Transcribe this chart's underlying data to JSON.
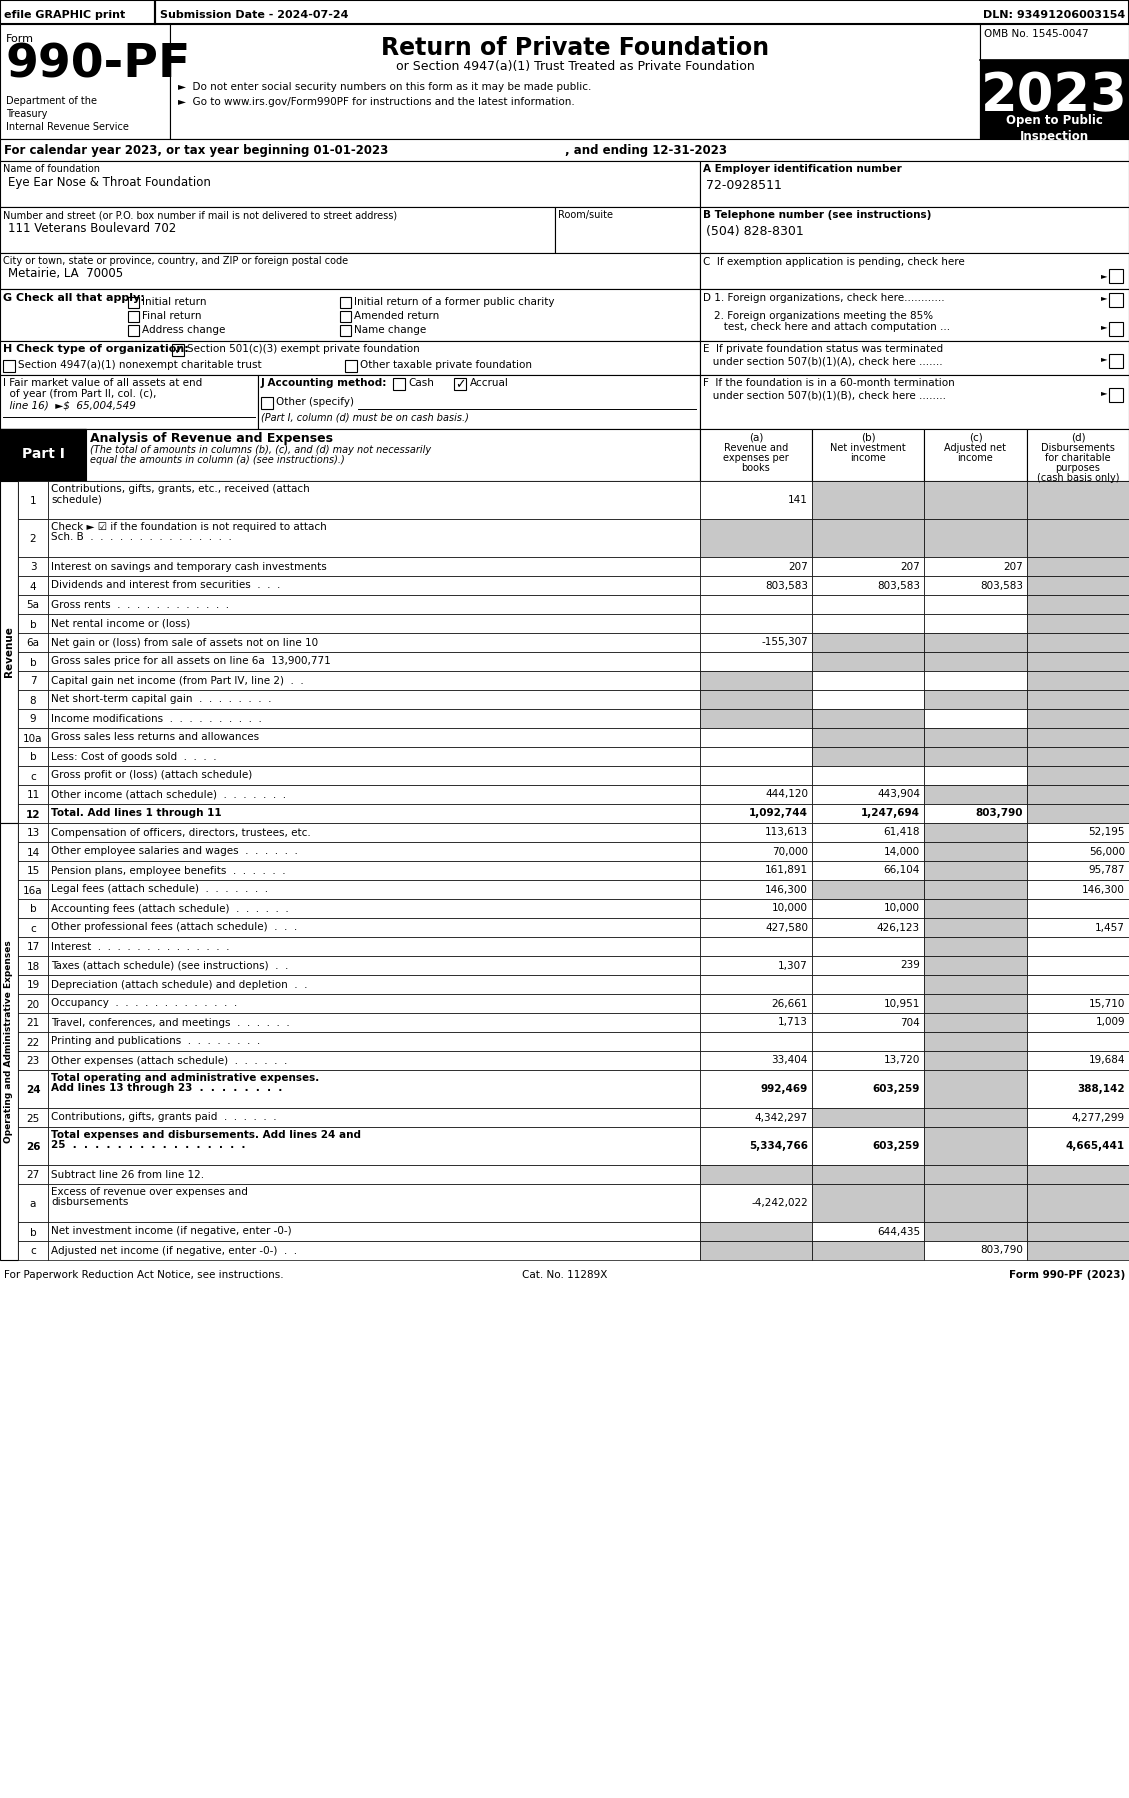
{
  "top_bar": {
    "efile": "efile GRAPHIC print",
    "submission": "Submission Date - 2024-07-24",
    "dln": "DLN: 93491206003154"
  },
  "form_number": "990-PF",
  "form_label": "Form",
  "title": "Return of Private Foundation",
  "subtitle": "or Section 4947(a)(1) Trust Treated as Private Foundation",
  "bullet1": "►  Do not enter social security numbers on this form as it may be made public.",
  "bullet2": "►  Go to www.irs.gov/Form990PF for instructions and the latest information.",
  "dept": "Department of the\nTreasury\nInternal Revenue Service",
  "omb": "OMB No. 1545-0047",
  "year": "2023",
  "open_to": "Open to Public\nInspection",
  "cal_year": "For calendar year 2023, or tax year beginning 01-01-2023",
  "ending": ", and ending 12-31-2023",
  "foundation_name_label": "Name of foundation",
  "foundation_name": "Eye Ear Nose & Throat Foundation",
  "ein_label": "A Employer identification number",
  "ein": "72-0928511",
  "address_label": "Number and street (or P.O. box number if mail is not delivered to street address)",
  "room_label": "Room/suite",
  "address": "111 Veterans Boulevard 702",
  "phone_label": "B Telephone number (see instructions)",
  "phone": "(504) 828-8301",
  "city_label": "City or town, state or province, country, and ZIP or foreign postal code",
  "city": "Metairie, LA  70005",
  "g_label": "G Check all that apply:",
  "d1_label": "D 1. Foreign organizations, check here............",
  "d2_label": "2. Foreign organizations meeting the 85%\n   test, check here and attach computation ...",
  "e_label": "E  If private foundation status was terminated\n   under section 507(b)(1)(A), check here .......",
  "h_label": "H Check type of organization:",
  "h_checked": "Section 501(c)(3) exempt private foundation",
  "h_unchecked1": "Section 4947(a)(1) nonexempt charitable trust",
  "h_unchecked2": "Other taxable private foundation",
  "i_label_1": "I Fair market value of all assets at end",
  "i_label_2": "  of year (from Part II, col. (c),",
  "i_label_3": "  line 16)  ►$  65,004,549",
  "j_label": "J Accounting method:",
  "j_cash": "Cash",
  "j_accrual": "Accrual",
  "j_other": "Other (specify)",
  "j_note": "(Part I, column (d) must be on cash basis.)",
  "f_label_1": "F  If the foundation is in a 60-month termination",
  "f_label_2": "   under section 507(b)(1)(B), check here ........",
  "part1_title": "Part I",
  "part1_heading": "Analysis of Revenue and Expenses",
  "part1_subtext1": "(The total of amounts in columns (b), (c), and (d) may not necessarily",
  "part1_subtext2": "equal the amounts in column (a) (see instructions).)",
  "col_a": "(a)\nRevenue and\nexpenses per\nbooks",
  "col_b": "(b)\nNet investment\nincome",
  "col_c": "(c)\nAdjusted net\nincome",
  "col_d": "(d)\nDisbursements\nfor charitable\npurposes\n(cash basis only)",
  "rows": [
    {
      "num": "1",
      "label": "Contributions, gifts, grants, etc., received (attach\nschedule)",
      "a": "141",
      "b": "",
      "c": "",
      "d": "",
      "shade_b": true,
      "shade_c": true,
      "shade_d": true
    },
    {
      "num": "2",
      "label": "Check ► ☑ if the foundation is not required to attach\nSch. B  .  .  .  .  .  .  .  .  .  .  .  .  .  .  .",
      "a": "",
      "b": "",
      "c": "",
      "d": "",
      "shade_a": true,
      "shade_b": true,
      "shade_c": true,
      "shade_d": true
    },
    {
      "num": "3",
      "label": "Interest on savings and temporary cash investments",
      "a": "207",
      "b": "207",
      "c": "207",
      "d": "",
      "shade_d": true
    },
    {
      "num": "4",
      "label": "Dividends and interest from securities  .  .  .",
      "a": "803,583",
      "b": "803,583",
      "c": "803,583",
      "d": "",
      "shade_d": true
    },
    {
      "num": "5a",
      "label": "Gross rents  .  .  .  .  .  .  .  .  .  .  .  .",
      "a": "",
      "b": "",
      "c": "",
      "d": "",
      "shade_d": true
    },
    {
      "num": "b",
      "label": "Net rental income or (loss)",
      "a": "",
      "b": "",
      "c": "",
      "d": "",
      "shade_d": true
    },
    {
      "num": "6a",
      "label": "Net gain or (loss) from sale of assets not on line 10",
      "a": "-155,307",
      "b": "",
      "c": "",
      "d": "",
      "shade_b": true,
      "shade_c": true,
      "shade_d": true
    },
    {
      "num": "b",
      "label": "Gross sales price for all assets on line 6a  13,900,771",
      "a": "",
      "b": "",
      "c": "",
      "d": "",
      "shade_b": true,
      "shade_c": true,
      "shade_d": true
    },
    {
      "num": "7",
      "label": "Capital gain net income (from Part IV, line 2)  .  .",
      "a": "",
      "b": "",
      "c": "",
      "d": "",
      "shade_a": true,
      "shade_d": true
    },
    {
      "num": "8",
      "label": "Net short-term capital gain  .  .  .  .  .  .  .  .",
      "a": "",
      "b": "",
      "c": "",
      "d": "",
      "shade_a": true,
      "shade_c": true,
      "shade_d": true
    },
    {
      "num": "9",
      "label": "Income modifications  .  .  .  .  .  .  .  .  .  .",
      "a": "",
      "b": "",
      "c": "",
      "d": "",
      "shade_a": true,
      "shade_b": true,
      "shade_d": true
    },
    {
      "num": "10a",
      "label": "Gross sales less returns and allowances",
      "a": "",
      "b": "",
      "c": "",
      "d": "",
      "shade_b": true,
      "shade_c": true,
      "shade_d": true
    },
    {
      "num": "b",
      "label": "Less: Cost of goods sold  .  .  .  .",
      "a": "",
      "b": "",
      "c": "",
      "d": "",
      "shade_b": true,
      "shade_c": true,
      "shade_d": true
    },
    {
      "num": "c",
      "label": "Gross profit or (loss) (attach schedule)",
      "a": "",
      "b": "",
      "c": "",
      "d": "",
      "shade_d": true
    },
    {
      "num": "11",
      "label": "Other income (attach schedule)  .  .  .  .  .  .  .",
      "a": "444,120",
      "b": "443,904",
      "c": "",
      "d": "",
      "shade_c": true,
      "shade_d": true
    },
    {
      "num": "12",
      "label": "Total. Add lines 1 through 11",
      "a": "1,092,744",
      "b": "1,247,694",
      "c": "803,790",
      "d": "",
      "bold": true,
      "shade_d": true
    },
    {
      "num": "13",
      "label": "Compensation of officers, directors, trustees, etc.",
      "a": "113,613",
      "b": "61,418",
      "c": "",
      "d": "52,195",
      "shade_c": true
    },
    {
      "num": "14",
      "label": "Other employee salaries and wages  .  .  .  .  .  .",
      "a": "70,000",
      "b": "14,000",
      "c": "",
      "d": "56,000",
      "shade_c": true
    },
    {
      "num": "15",
      "label": "Pension plans, employee benefits  .  .  .  .  .  .",
      "a": "161,891",
      "b": "66,104",
      "c": "",
      "d": "95,787",
      "shade_c": true
    },
    {
      "num": "16a",
      "label": "Legal fees (attach schedule)  .  .  .  .  .  .  .",
      "a": "146,300",
      "b": "",
      "c": "",
      "d": "146,300",
      "shade_b": true,
      "shade_c": true
    },
    {
      "num": "b",
      "label": "Accounting fees (attach schedule)  .  .  .  .  .  .",
      "a": "10,000",
      "b": "10,000",
      "c": "",
      "d": "",
      "shade_c": true
    },
    {
      "num": "c",
      "label": "Other professional fees (attach schedule)  .  .  .",
      "a": "427,580",
      "b": "426,123",
      "c": "",
      "d": "1,457",
      "shade_c": true
    },
    {
      "num": "17",
      "label": "Interest  .  .  .  .  .  .  .  .  .  .  .  .  .  .",
      "a": "",
      "b": "",
      "c": "",
      "d": "",
      "shade_c": true
    },
    {
      "num": "18",
      "label": "Taxes (attach schedule) (see instructions)  .  .",
      "a": "1,307",
      "b": "239",
      "c": "",
      "d": "",
      "shade_c": true
    },
    {
      "num": "19",
      "label": "Depreciation (attach schedule) and depletion  .  .",
      "a": "",
      "b": "",
      "c": "",
      "d": "",
      "shade_c": true
    },
    {
      "num": "20",
      "label": "Occupancy  .  .  .  .  .  .  .  .  .  .  .  .  .",
      "a": "26,661",
      "b": "10,951",
      "c": "",
      "d": "15,710",
      "shade_c": true
    },
    {
      "num": "21",
      "label": "Travel, conferences, and meetings  .  .  .  .  .  .",
      "a": "1,713",
      "b": "704",
      "c": "",
      "d": "1,009",
      "shade_c": true
    },
    {
      "num": "22",
      "label": "Printing and publications  .  .  .  .  .  .  .  .",
      "a": "",
      "b": "",
      "c": "",
      "d": "",
      "shade_c": true
    },
    {
      "num": "23",
      "label": "Other expenses (attach schedule)  .  .  .  .  .  .",
      "a": "33,404",
      "b": "13,720",
      "c": "",
      "d": "19,684",
      "shade_c": true
    },
    {
      "num": "24",
      "label": "Total operating and administrative expenses.\nAdd lines 13 through 23  .  .  .  .  .  .  .  .",
      "a": "992,469",
      "b": "603,259",
      "c": "",
      "d": "388,142",
      "bold": true,
      "shade_c": true
    },
    {
      "num": "25",
      "label": "Contributions, gifts, grants paid  .  .  .  .  .  .",
      "a": "4,342,297",
      "b": "",
      "c": "",
      "d": "4,277,299",
      "shade_b": true,
      "shade_c": true
    },
    {
      "num": "26",
      "label": "Total expenses and disbursements. Add lines 24 and\n25  .  .  .  .  .  .  .  .  .  .  .  .  .  .  .  .",
      "a": "5,334,766",
      "b": "603,259",
      "c": "",
      "d": "4,665,441",
      "bold": true,
      "shade_c": true
    },
    {
      "num": "27",
      "label": "Subtract line 26 from line 12.",
      "a": "",
      "b": "",
      "c": "",
      "d": "",
      "shade_a": true,
      "shade_b": true,
      "shade_c": true,
      "shade_d": true
    },
    {
      "num": "a",
      "label": "Excess of revenue over expenses and\ndisbursements",
      "a": "-4,242,022",
      "b": "",
      "c": "",
      "d": "",
      "shade_b": true,
      "shade_c": true,
      "shade_d": true
    },
    {
      "num": "b",
      "label": "Net investment income (if negative, enter -0-)",
      "a": "",
      "b": "644,435",
      "c": "",
      "d": "",
      "shade_a": true,
      "shade_c": true,
      "shade_d": true
    },
    {
      "num": "c",
      "label": "Adjusted net income (if negative, enter -0-)  .  .",
      "a": "",
      "b": "",
      "c": "803,790",
      "d": "",
      "shade_a": true,
      "shade_b": true,
      "shade_d": true
    }
  ],
  "revenue_label": "Revenue",
  "expenses_label": "Operating and Administrative Expenses",
  "footer_left": "For Paperwork Reduction Act Notice, see instructions.",
  "footer_cat": "Cat. No. 11289X",
  "footer_right": "Form 990-PF (2023)"
}
